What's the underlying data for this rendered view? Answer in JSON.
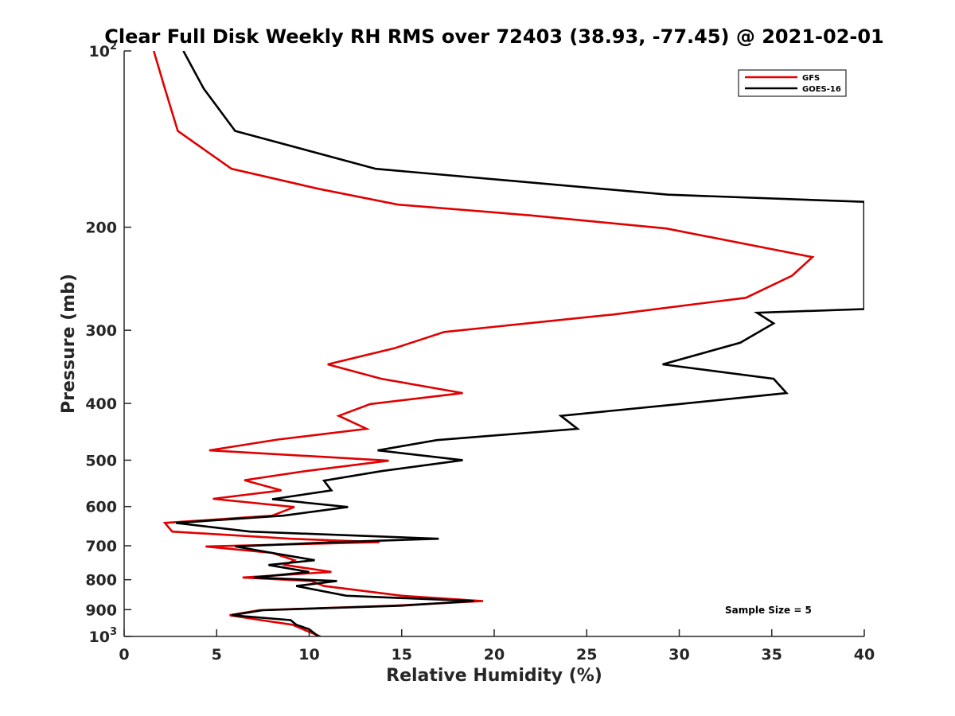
{
  "chart_data": {
    "type": "line",
    "title": "Clear Full Disk Weekly RH RMS over 72403 (38.93, -77.45) @ 2021-02-01",
    "xlabel": "Relative Humidity (%)",
    "ylabel": "Pressure (mb)",
    "xlim": [
      0,
      40
    ],
    "ylim": [
      100,
      1000
    ],
    "y_scale": "log",
    "y_reversed": true,
    "x_ticks": [
      0,
      5,
      10,
      15,
      20,
      25,
      30,
      35,
      40
    ],
    "x_tick_labels": [
      "0",
      "5",
      "10",
      "15",
      "20",
      "25",
      "30",
      "35",
      "40"
    ],
    "y_ticks": [
      100,
      200,
      300,
      400,
      500,
      600,
      700,
      800,
      900,
      1000
    ],
    "y_tick_labels": [
      {
        "base": "10",
        "sup": "2"
      },
      {
        "base": "200",
        "sup": ""
      },
      {
        "base": "300",
        "sup": ""
      },
      {
        "base": "400",
        "sup": ""
      },
      {
        "base": "500",
        "sup": ""
      },
      {
        "base": "600",
        "sup": ""
      },
      {
        "base": "700",
        "sup": ""
      },
      {
        "base": "800",
        "sup": ""
      },
      {
        "base": "900",
        "sup": ""
      },
      {
        "base": "10",
        "sup": "3"
      }
    ],
    "grid": false,
    "legend_position": "top-right",
    "annotation": "Sample Size = 5",
    "series": [
      {
        "name": "GFS",
        "color": "#e00000",
        "points": [
          [
            1.6,
            100
          ],
          [
            2.2,
            116
          ],
          [
            2.9,
            137
          ],
          [
            5.8,
            159
          ],
          [
            10.5,
            172
          ],
          [
            14.8,
            183
          ],
          [
            22.0,
            191
          ],
          [
            29.3,
            201
          ],
          [
            37.2,
            225
          ],
          [
            36.1,
            242
          ],
          [
            33.6,
            264
          ],
          [
            26.4,
            282
          ],
          [
            17.3,
            302
          ],
          [
            14.6,
            322
          ],
          [
            11.0,
            343
          ],
          [
            13.9,
            363
          ],
          [
            18.3,
            384
          ],
          [
            13.3,
            401
          ],
          [
            11.6,
            420
          ],
          [
            13.1,
            442
          ],
          [
            8.3,
            461
          ],
          [
            4.6,
            481
          ],
          [
            11.0,
            494
          ],
          [
            14.3,
            501
          ],
          [
            9.8,
            522
          ],
          [
            6.5,
            541
          ],
          [
            8.5,
            563
          ],
          [
            4.8,
            582
          ],
          [
            9.2,
            601
          ],
          [
            8.0,
            622
          ],
          [
            2.2,
            640
          ],
          [
            2.6,
            662
          ],
          [
            9.0,
            681
          ],
          [
            13.8,
            690
          ],
          [
            4.4,
            702
          ],
          [
            8.0,
            720
          ],
          [
            9.2,
            741
          ],
          [
            8.7,
            755
          ],
          [
            11.2,
            776
          ],
          [
            6.4,
            793
          ],
          [
            10.1,
            804
          ],
          [
            10.8,
            820
          ],
          [
            15.0,
            852
          ],
          [
            19.4,
            870
          ],
          [
            14.6,
            886
          ],
          [
            7.3,
            902
          ],
          [
            5.7,
            920
          ],
          [
            7.4,
            938
          ],
          [
            9.1,
            955
          ],
          [
            9.6,
            970
          ],
          [
            10.6,
            1000
          ]
        ]
      },
      {
        "name": "GOES-16",
        "color": "#000000",
        "points": [
          [
            3.2,
            100
          ],
          [
            4.3,
            116
          ],
          [
            6.0,
            137
          ],
          [
            13.6,
            159
          ],
          [
            29.4,
            176
          ],
          [
            40.0,
            181
          ],
          [
            40.0,
            276
          ],
          [
            34.2,
            280
          ],
          [
            35.1,
            292
          ],
          [
            33.3,
            315
          ],
          [
            29.1,
            343
          ],
          [
            35.1,
            363
          ],
          [
            35.8,
            384
          ],
          [
            30.0,
            401
          ],
          [
            23.6,
            420
          ],
          [
            24.5,
            442
          ],
          [
            16.9,
            462
          ],
          [
            13.7,
            481
          ],
          [
            18.3,
            500
          ],
          [
            13.9,
            522
          ],
          [
            10.8,
            542
          ],
          [
            11.2,
            563
          ],
          [
            8.0,
            583
          ],
          [
            12.1,
            601
          ],
          [
            8.6,
            622
          ],
          [
            2.8,
            640
          ],
          [
            6.8,
            662
          ],
          [
            17.0,
            681
          ],
          [
            11.5,
            690
          ],
          [
            6.0,
            702
          ],
          [
            8.0,
            720
          ],
          [
            10.3,
            741
          ],
          [
            7.8,
            755
          ],
          [
            10.0,
            776
          ],
          [
            7.0,
            793
          ],
          [
            11.5,
            804
          ],
          [
            9.3,
            820
          ],
          [
            12.0,
            852
          ],
          [
            18.9,
            870
          ],
          [
            15.0,
            886
          ],
          [
            7.5,
            902
          ],
          [
            5.8,
            920
          ],
          [
            9.0,
            938
          ],
          [
            9.3,
            955
          ],
          [
            10.0,
            972
          ],
          [
            10.5,
            1000
          ]
        ]
      }
    ]
  }
}
